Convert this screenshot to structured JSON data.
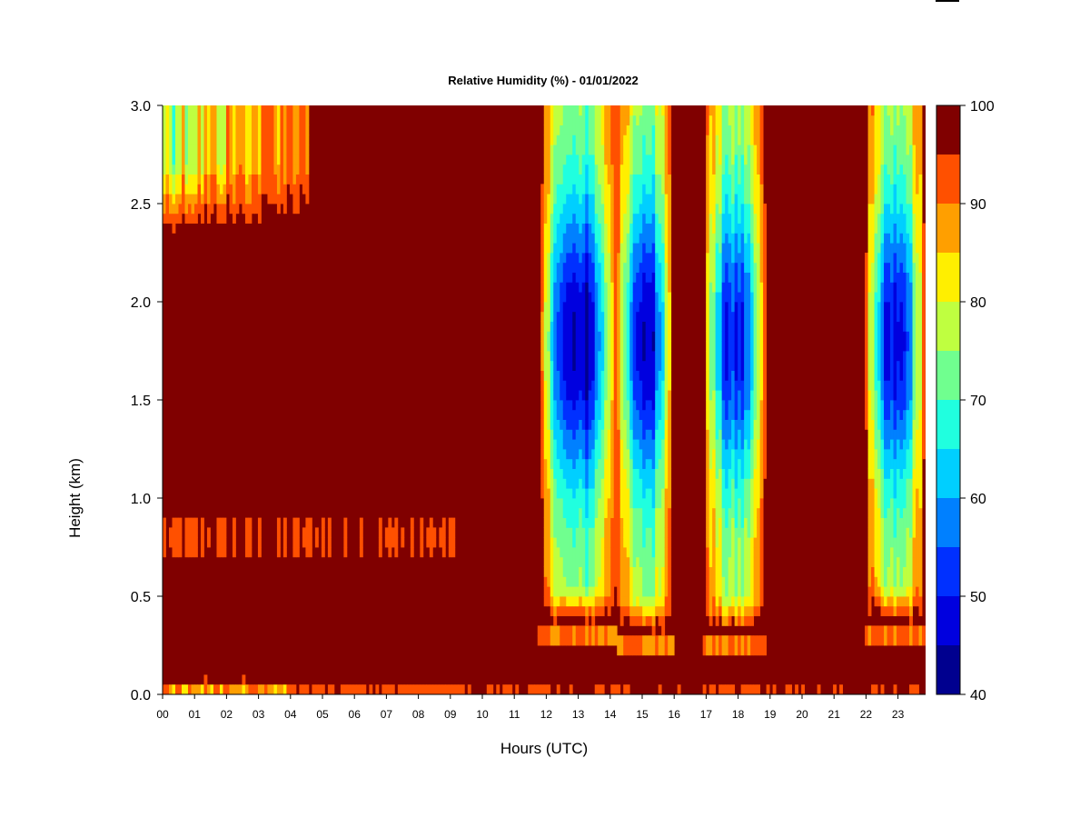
{
  "chart_data": {
    "type": "heatmap",
    "title": "Relative Humidity (%) - 01/01/2022",
    "xlabel": "Hours (UTC)",
    "ylabel": "Height (km)",
    "x_ticks": [
      "00",
      "01",
      "02",
      "03",
      "04",
      "05",
      "06",
      "07",
      "08",
      "09",
      "10",
      "11",
      "12",
      "13",
      "14",
      "15",
      "16",
      "17",
      "18",
      "19",
      "20",
      "21",
      "22",
      "23"
    ],
    "y_ticks": [
      "0.0",
      "0.5",
      "1.0",
      "1.5",
      "2.0",
      "2.5",
      "3.0"
    ],
    "xlim": [
      0,
      23.85
    ],
    "ylim": [
      0,
      3.0
    ],
    "colorbar": {
      "levels": [
        40,
        45,
        50,
        55,
        60,
        65,
        70,
        75,
        80,
        85,
        90,
        95,
        100
      ],
      "tick_labels": [
        "40",
        "50",
        "60",
        "70",
        "80",
        "90",
        "100"
      ],
      "colors": [
        "#00008F",
        "#0000DF",
        "#0030FF",
        "#0080FF",
        "#00CFFF",
        "#20FFDF",
        "#70FF8F",
        "#BFFF40",
        "#FFEF00",
        "#FF9F00",
        "#FF5000",
        "#EF0000",
        "#800000"
      ]
    },
    "dry_bands": [
      {
        "start_hour": 11.75,
        "end_hour": 14.2,
        "min_rh": 44,
        "core_height_km": 1.8,
        "base_height_km": 0.35
      },
      {
        "start_hour": 14.2,
        "end_hour": 15.95,
        "min_rh": 46,
        "core_height_km": 1.8,
        "base_height_km": 0.3
      },
      {
        "start_hour": 16.9,
        "end_hour": 18.9,
        "min_rh": 50,
        "core_height_km": 1.8,
        "base_height_km": 0.3
      },
      {
        "start_hour": 21.95,
        "end_hour": 23.85,
        "min_rh": 47,
        "core_height_km": 1.8,
        "base_height_km": 0.35
      }
    ]
  }
}
